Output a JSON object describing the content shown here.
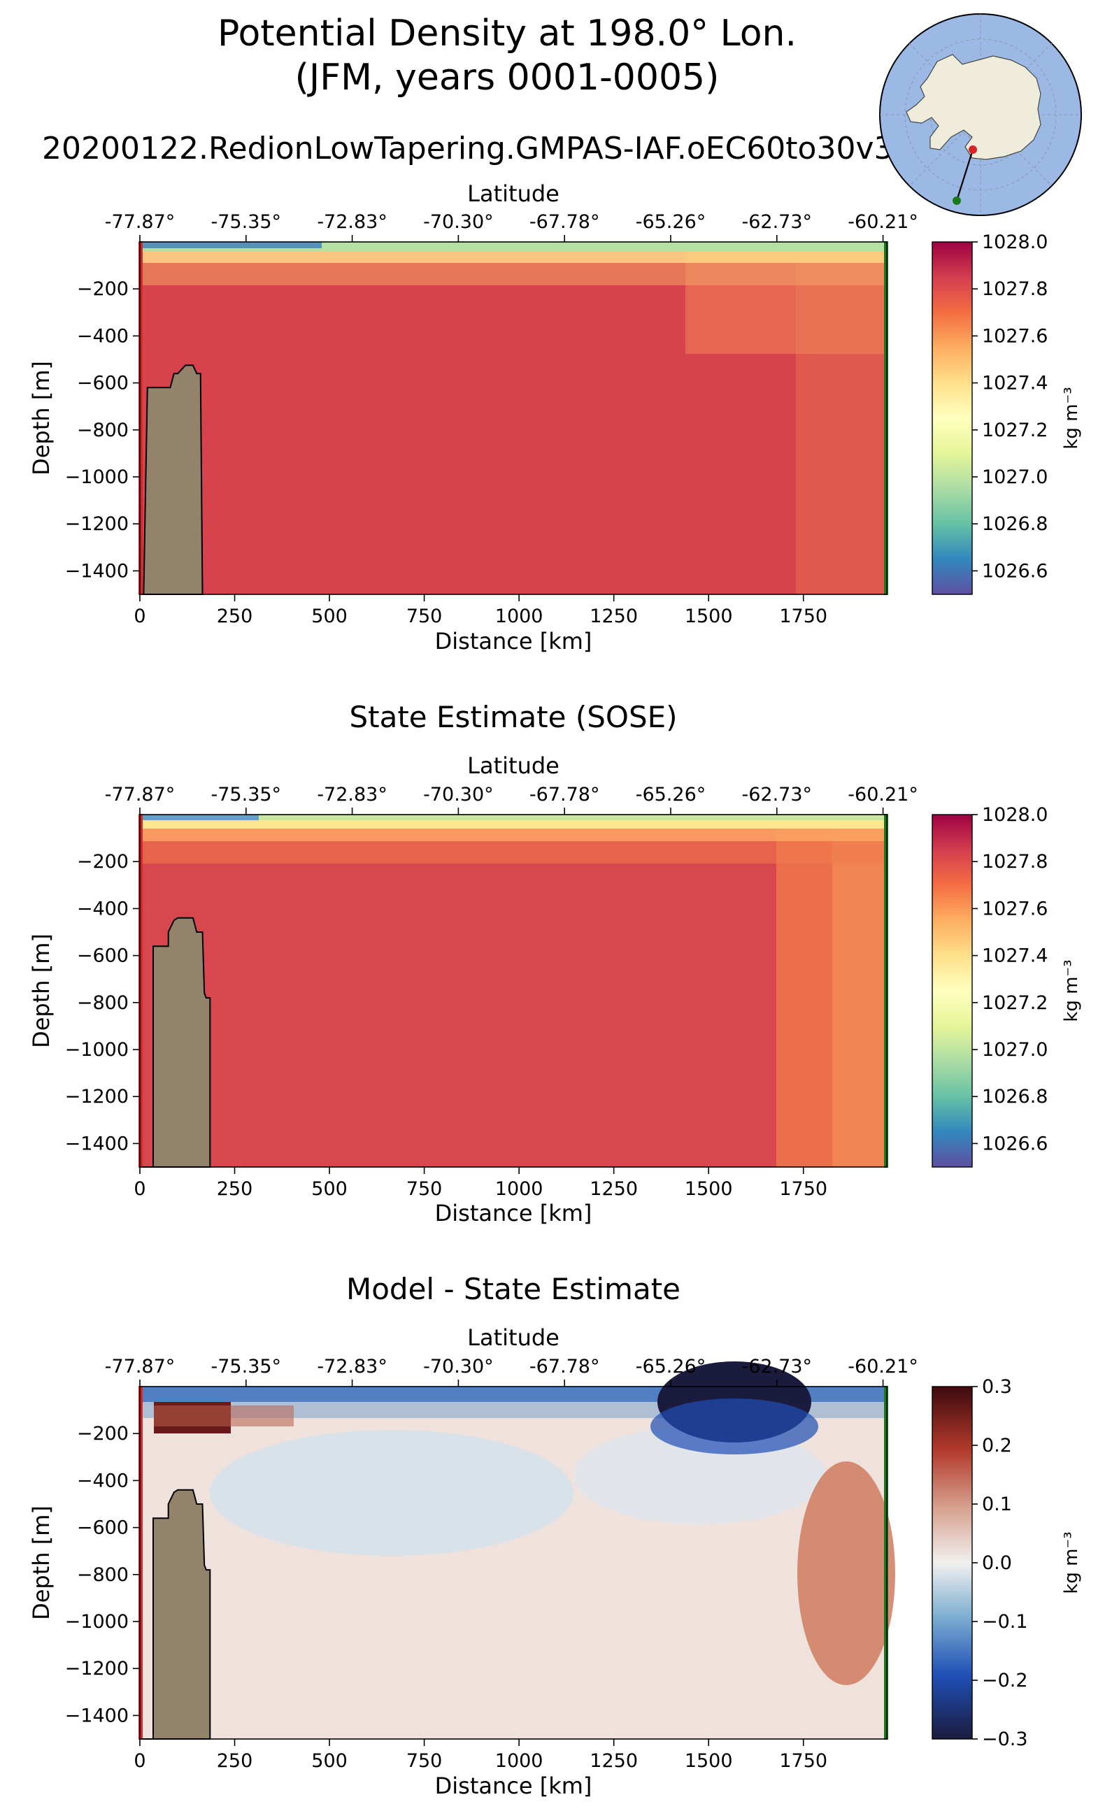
{
  "figure": {
    "title": "Potential Density at 198.0° Lon.\n(JFM, years 0001-0005)",
    "title_line1": "Potential Density at 198.0° Lon.",
    "title_line2": "(JFM, years 0001-0005)",
    "run_name": "20200122.RedionLowTapering.GMPAS-IAF.oEC60to30v3"
  },
  "colors": {
    "topography": "#93836a",
    "start_marker": "#d62728",
    "end_marker": "#1a7a1a",
    "inset_ocean": "#9bb9e4",
    "inset_land": "#efecdc"
  },
  "chart_data": [
    {
      "type": "heatmap",
      "panel": "model",
      "title": "",
      "xlabel": "Distance [km]",
      "ylabel": "Depth [m]",
      "top_xlabel": "Latitude",
      "xlim": [
        0,
        1970
      ],
      "ylim": [
        -1500,
        0
      ],
      "x_ticks": [
        0,
        250,
        500,
        750,
        1000,
        1250,
        1500,
        1750
      ],
      "x_tick_labels": [
        "0",
        "250",
        "500",
        "750",
        "1000",
        "1250",
        "1500",
        "1750"
      ],
      "y_ticks": [
        -200,
        -400,
        -600,
        -800,
        -1000,
        -1200,
        -1400
      ],
      "y_tick_labels": [
        "−200",
        "−400",
        "−600",
        "−800",
        "−1000",
        "−1200",
        "−1400"
      ],
      "top_ticks": [
        0,
        280,
        560,
        840,
        1120,
        1400,
        1680,
        1960
      ],
      "top_tick_labels": [
        "-77.87°",
        "-75.35°",
        "-72.83°",
        "-70.30°",
        "-67.78°",
        "-65.26°",
        "-62.73°",
        "-60.21°"
      ],
      "colorbar": {
        "cmap": "Spectral_r",
        "vmin": 1026.5,
        "vmax": 1028.0,
        "ticks": [
          1028.0,
          1027.8,
          1027.6,
          1027.4,
          1027.2,
          1027.0,
          1026.8,
          1026.6
        ],
        "tick_labels": [
          "1028.0",
          "1027.8",
          "1027.6",
          "1027.4",
          "1027.2",
          "1027.0",
          "1026.8",
          "1026.6"
        ],
        "label": "kg m⁻³"
      },
      "bottom_profile": {
        "x_km": [
          0,
          10,
          20,
          40,
          60,
          80,
          90,
          100,
          120,
          140,
          150,
          160,
          165
        ],
        "depth_m": [
          -1500,
          -1500,
          -620,
          -620,
          -620,
          -620,
          -560,
          -560,
          -525,
          -525,
          -560,
          -560,
          -1500
        ]
      }
    },
    {
      "type": "heatmap",
      "panel": "sose",
      "title": "State Estimate (SOSE)",
      "xlabel": "Distance [km]",
      "ylabel": "Depth [m]",
      "top_xlabel": "Latitude",
      "xlim": [
        0,
        1970
      ],
      "ylim": [
        -1500,
        0
      ],
      "x_ticks": [
        0,
        250,
        500,
        750,
        1000,
        1250,
        1500,
        1750
      ],
      "x_tick_labels": [
        "0",
        "250",
        "500",
        "750",
        "1000",
        "1250",
        "1500",
        "1750"
      ],
      "y_ticks": [
        -200,
        -400,
        -600,
        -800,
        -1000,
        -1200,
        -1400
      ],
      "y_tick_labels": [
        "−200",
        "−400",
        "−600",
        "−800",
        "−1000",
        "−1200",
        "−1400"
      ],
      "top_ticks": [
        0,
        280,
        560,
        840,
        1120,
        1400,
        1680,
        1960
      ],
      "top_tick_labels": [
        "-77.87°",
        "-75.35°",
        "-72.83°",
        "-70.30°",
        "-67.78°",
        "-65.26°",
        "-62.73°",
        "-60.21°"
      ],
      "colorbar": {
        "cmap": "Spectral_r",
        "vmin": 1026.5,
        "vmax": 1028.0,
        "ticks": [
          1028.0,
          1027.8,
          1027.6,
          1027.4,
          1027.2,
          1027.0,
          1026.8,
          1026.6
        ],
        "tick_labels": [
          "1028.0",
          "1027.8",
          "1027.6",
          "1027.4",
          "1027.2",
          "1027.0",
          "1026.8",
          "1026.6"
        ],
        "label": "kg m⁻³"
      },
      "bottom_profile": {
        "x_km": [
          0,
          10,
          35,
          35,
          60,
          75,
          75,
          90,
          100,
          140,
          150,
          165,
          170,
          175,
          185,
          185
        ],
        "depth_m": [
          -1500,
          -1500,
          -1500,
          -560,
          -560,
          -560,
          -500,
          -450,
          -440,
          -440,
          -500,
          -500,
          -760,
          -780,
          -780,
          -1500
        ]
      }
    },
    {
      "type": "heatmap",
      "panel": "difference",
      "title": "Model - State Estimate",
      "xlabel": "Distance [km]",
      "ylabel": "Depth [m]",
      "top_xlabel": "Latitude",
      "xlim": [
        0,
        1970
      ],
      "ylim": [
        -1500,
        0
      ],
      "x_ticks": [
        0,
        250,
        500,
        750,
        1000,
        1250,
        1500,
        1750
      ],
      "x_tick_labels": [
        "0",
        "250",
        "500",
        "750",
        "1000",
        "1250",
        "1500",
        "1750"
      ],
      "y_ticks": [
        -200,
        -400,
        -600,
        -800,
        -1000,
        -1200,
        -1400
      ],
      "y_tick_labels": [
        "−200",
        "−400",
        "−600",
        "−800",
        "−1000",
        "−1200",
        "−1400"
      ],
      "top_ticks": [
        0,
        280,
        560,
        840,
        1120,
        1400,
        1680,
        1960
      ],
      "top_tick_labels": [
        "-77.87°",
        "-75.35°",
        "-72.83°",
        "-70.30°",
        "-67.78°",
        "-65.26°",
        "-62.73°",
        "-60.21°"
      ],
      "colorbar": {
        "cmap": "RdBu_r",
        "vmin": -0.3,
        "vmax": 0.3,
        "ticks": [
          0.3,
          0.2,
          0.1,
          0.0,
          -0.1,
          -0.2,
          -0.3
        ],
        "tick_labels": [
          "0.3",
          "0.2",
          "0.1",
          "0.0",
          "−0.1",
          "−0.2",
          "−0.3"
        ],
        "label": "kg m⁻³"
      },
      "bottom_profile": {
        "x_km": [
          0,
          10,
          35,
          35,
          60,
          75,
          75,
          90,
          100,
          140,
          150,
          165,
          170,
          175,
          185,
          185
        ],
        "depth_m": [
          -1500,
          -1500,
          -1500,
          -560,
          -560,
          -560,
          -500,
          -450,
          -440,
          -440,
          -500,
          -500,
          -760,
          -780,
          -780,
          -1500
        ]
      }
    }
  ]
}
